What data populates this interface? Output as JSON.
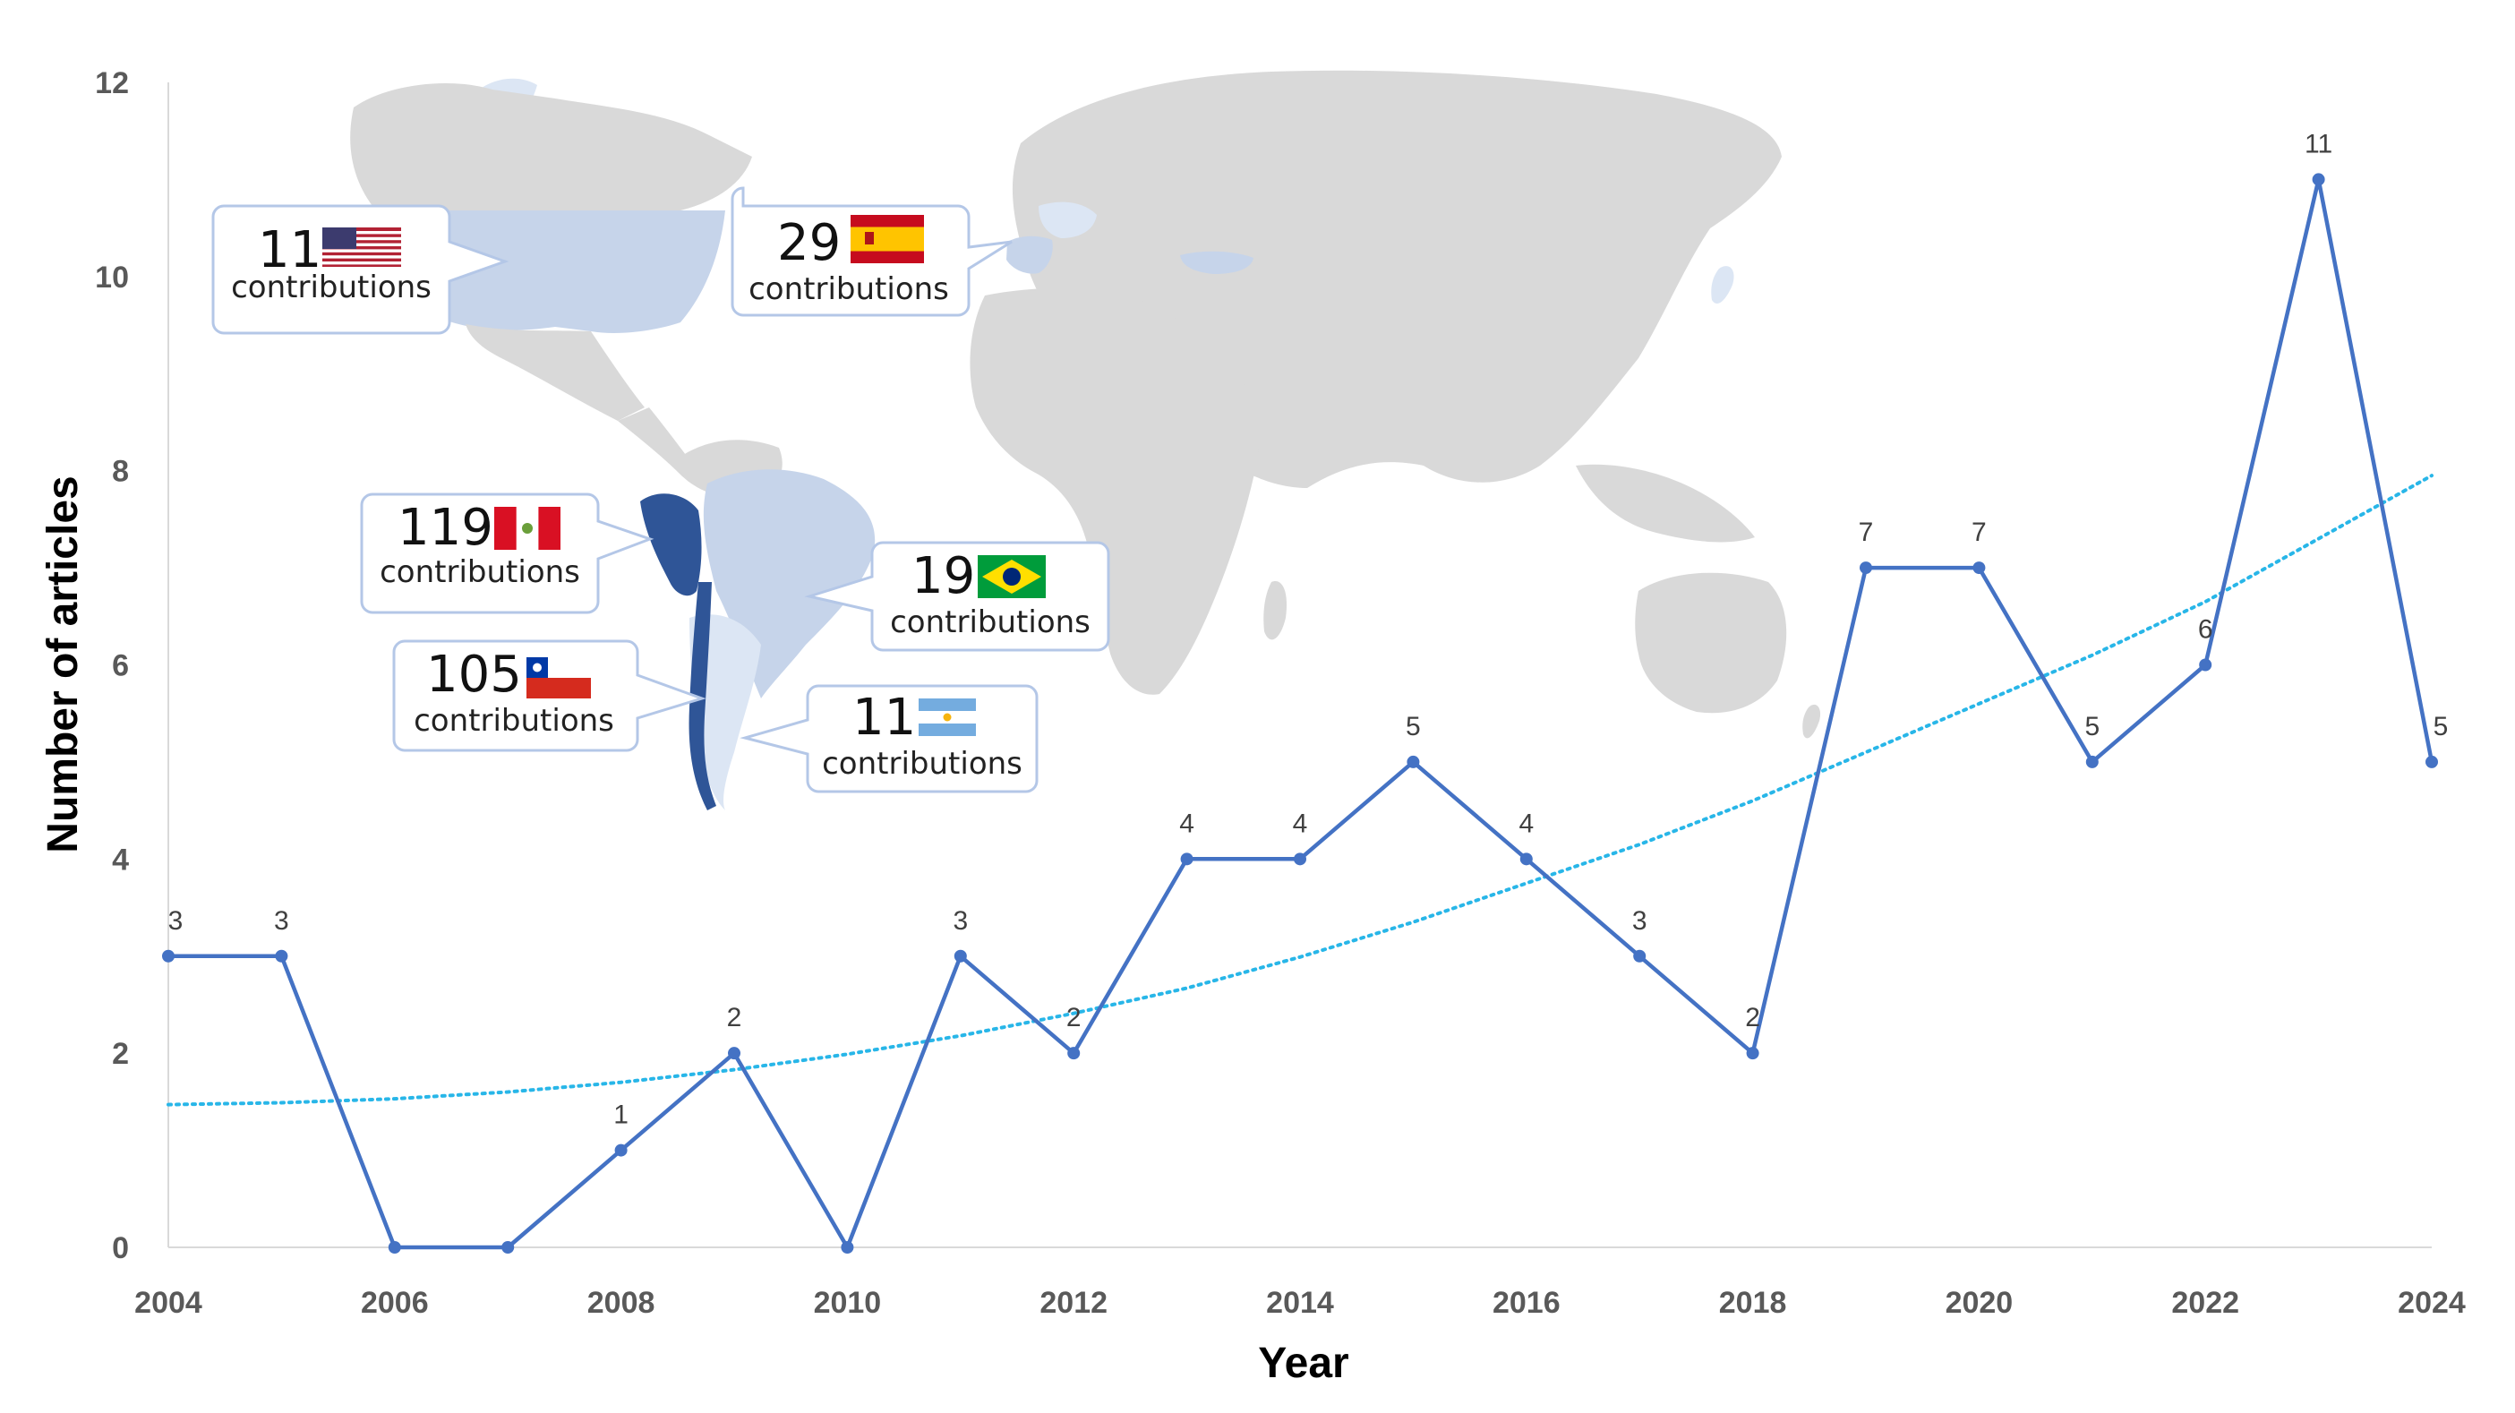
{
  "chart_data": {
    "type": "line",
    "title": "",
    "xlabel": "Year",
    "ylabel": "Number of articles",
    "xlim": [
      2004,
      2024
    ],
    "ylim": [
      0,
      12
    ],
    "x_ticks": [
      "2004",
      "2006",
      "2008",
      "2010",
      "2012",
      "2014",
      "2016",
      "2018",
      "2020",
      "2022",
      "2024"
    ],
    "y_ticks": [
      "0",
      "2",
      "4",
      "6",
      "8",
      "10",
      "12"
    ],
    "x": [
      2004,
      2005,
      2006,
      2007,
      2008,
      2009,
      2010,
      2011,
      2012,
      2013,
      2014,
      2015,
      2016,
      2017,
      2018,
      2019,
      2020,
      2021,
      2022,
      2023,
      2024
    ],
    "series": [
      {
        "values": [
          3,
          3,
          0,
          0,
          1,
          2,
          0,
          3,
          2,
          4,
          4,
          5,
          4,
          3,
          2,
          7,
          7,
          5,
          6,
          11,
          5
        ],
        "data_labels": [
          "3",
          "3",
          "",
          "",
          "1",
          "2",
          "",
          "3",
          "2",
          "4",
          "4",
          "5",
          "4",
          "3",
          "2",
          "7",
          "7",
          "5",
          "6",
          "11",
          "5"
        ],
        "color": "#4472c4"
      }
    ],
    "trendline": {
      "style": "dotted",
      "color": "#28b6e8",
      "x": [
        2004,
        2005,
        2006,
        2007,
        2008,
        2009,
        2010,
        2011,
        2012,
        2013,
        2014,
        2015,
        2016,
        2017,
        2018,
        2019,
        2020,
        2021,
        2022,
        2023,
        2024
      ],
      "y": [
        1.47,
        1.49,
        1.53,
        1.6,
        1.7,
        1.83,
        1.99,
        2.18,
        2.41,
        2.67,
        2.99,
        3.35,
        3.75,
        4.15,
        4.6,
        5.1,
        5.6,
        6.1,
        6.65,
        7.3,
        7.95
      ]
    },
    "grid": false,
    "legend": "none"
  },
  "map": {
    "country_colors": {
      "base": "#d9d9d9",
      "low": "#dce6f4",
      "mid": "#c6d4ea",
      "high": "#2f5597"
    },
    "callouts": [
      {
        "id": "usa",
        "count": "11",
        "label": "contributions",
        "flag": "usa-flag-icon"
      },
      {
        "id": "spain",
        "count": "29",
        "label": "contributions",
        "flag": "spain-flag-icon"
      },
      {
        "id": "peru",
        "count": "119",
        "label": "contributions",
        "flag": "peru-flag-icon"
      },
      {
        "id": "brazil",
        "count": "19",
        "label": "contributions",
        "flag": "brazil-flag-icon"
      },
      {
        "id": "chile",
        "count": "105",
        "label": "contributions",
        "flag": "chile-flag-icon"
      },
      {
        "id": "argentina",
        "count": "11",
        "label": "contributions",
        "flag": "argentina-flag-icon"
      }
    ]
  }
}
